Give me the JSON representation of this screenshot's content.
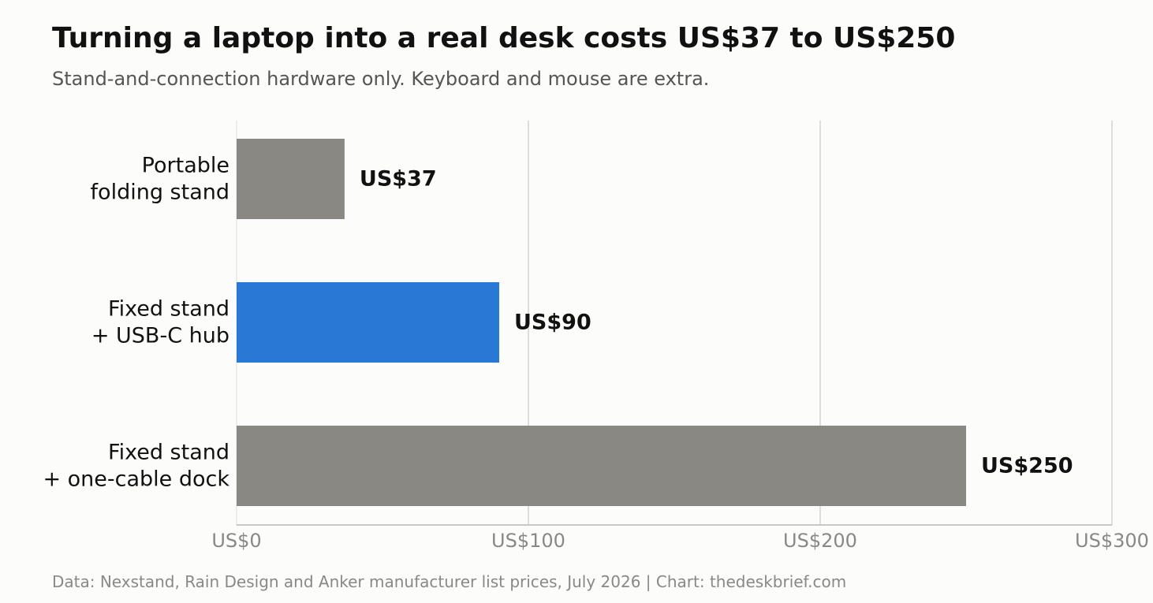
{
  "title": "Turning a laptop into a real desk costs US$37 to US$250",
  "subtitle": "Stand-and-connection hardware only. Keyboard and mouse are extra.",
  "footer": "Data: Nexstand, Rain Design and Anker manufacturer list prices, July 2026  |  Chart: thedeskbrief.com",
  "colors": {
    "default_bar": "#898883",
    "highlight_bar": "#2a78d6",
    "grid": "#dddddd",
    "axis": "#c8c8c4"
  },
  "chart_data": {
    "type": "bar",
    "orientation": "horizontal",
    "categories": [
      [
        "Portable",
        "folding stand"
      ],
      [
        "Fixed stand",
        "+ USB-C hub"
      ],
      [
        "Fixed stand",
        "+ one-cable dock"
      ]
    ],
    "values": [
      37,
      90,
      250
    ],
    "value_labels": [
      "US$37",
      "US$90",
      "US$250"
    ],
    "highlight_index": 1,
    "xlim": [
      0,
      300
    ],
    "xticks": [
      0,
      100,
      200,
      300
    ],
    "xtick_labels": [
      "US$0",
      "US$100",
      "US$200",
      "US$300"
    ],
    "grid": "vertical",
    "xlabel": "",
    "ylabel": ""
  }
}
